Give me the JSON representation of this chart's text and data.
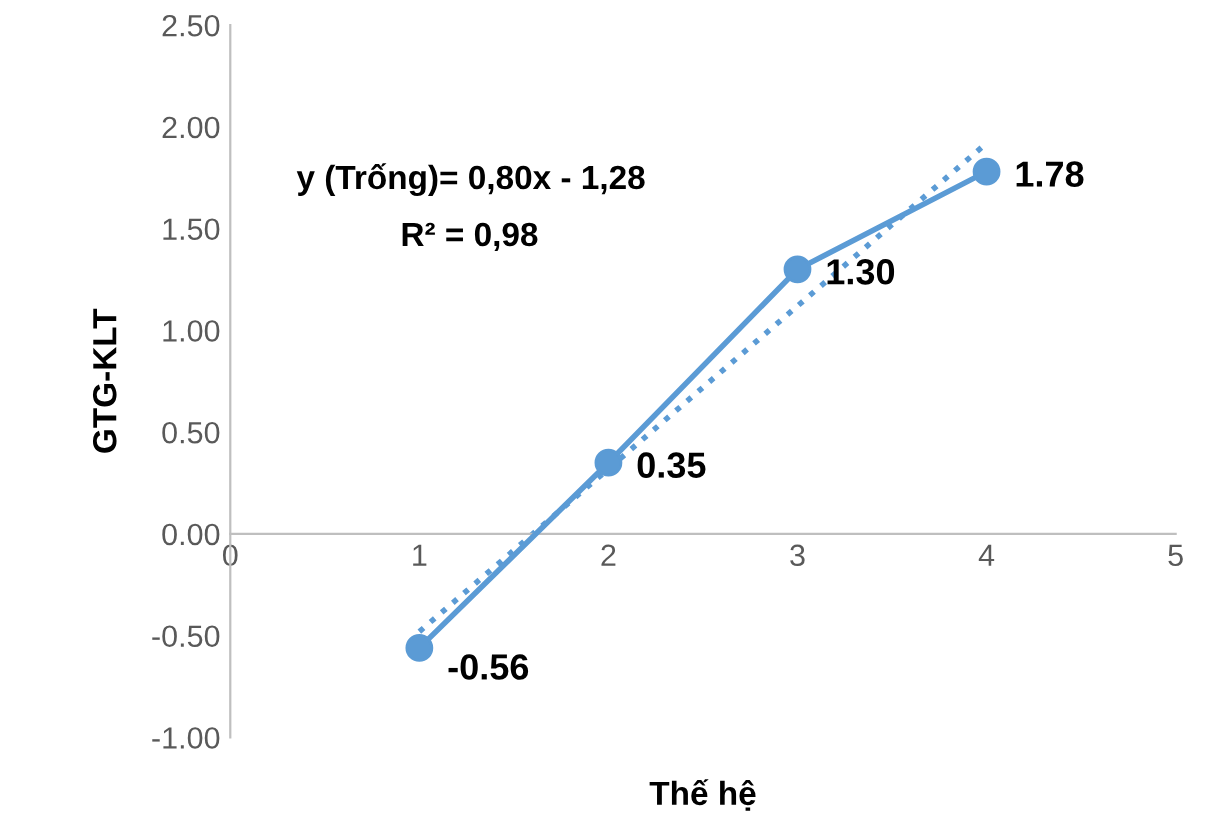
{
  "chart_data": {
    "type": "line",
    "xlabel": "Thế hệ",
    "ylabel": "GTG-KLT",
    "x": [
      1,
      2,
      3,
      4
    ],
    "series": [
      {
        "color": "#5b9bd5",
        "values": [
          -0.56,
          0.35,
          1.3,
          1.78
        ],
        "value_labels": [
          "-0.56",
          "0.35",
          "1.30",
          "1.78"
        ],
        "marker": "circle",
        "line_style": "solid"
      },
      {
        "type": "line",
        "x": [
          1,
          4
        ],
        "color": "#5b9bd5",
        "values": [
          -0.48,
          1.92
        ],
        "marker": "none",
        "line_style": "dotted"
      }
    ],
    "annotations": [
      "y (Trống)= 0,80x - 1,28",
      "R² = 0,98"
    ],
    "xlim": [
      0,
      5
    ],
    "xticks": [
      0,
      1,
      2,
      3,
      4,
      5
    ],
    "ylim": [
      -1,
      2.5
    ],
    "yticks": [
      {
        "value": -1,
        "label": "-1.00"
      },
      {
        "value": -0.5,
        "label": "-0.50"
      },
      {
        "value": 0,
        "label": "0.00"
      },
      {
        "value": 0.5,
        "label": "0.50"
      },
      {
        "value": 1,
        "label": "1.00"
      },
      {
        "value": 1.5,
        "label": "1.50"
      },
      {
        "value": 2,
        "label": "2.00"
      },
      {
        "value": 2.5,
        "label": "2.50"
      }
    ],
    "grid": false,
    "legend": false
  }
}
